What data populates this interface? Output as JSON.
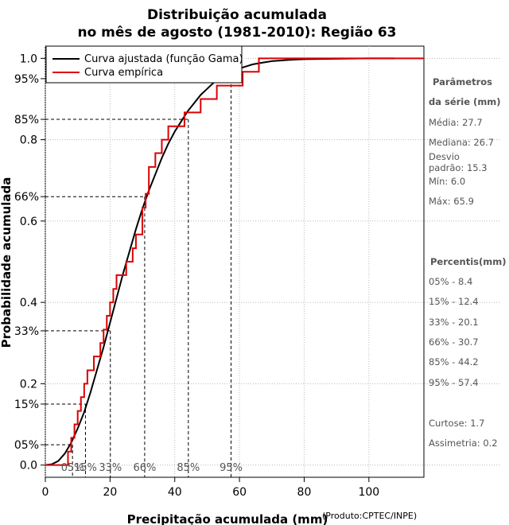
{
  "chart_data": {
    "type": "line",
    "title_line1": "Distribuição acumulada",
    "title_line2": "no mês de agosto (1981-2010): Região 63",
    "xlabel": "Precipitação acumulada (mm)",
    "ylabel": "Probabilidade acumulada",
    "credit": "(Produto:CPTEC/INPE)",
    "xlim": [
      0,
      117
    ],
    "ylim": [
      -0.03,
      1.03
    ],
    "x_ticks": [
      0,
      20,
      40,
      60,
      80,
      100
    ],
    "y_ticks": [
      "0.0",
      "0.2",
      "0.4",
      "0.6",
      "0.8",
      "1.0"
    ],
    "percentile_ticks": [
      {
        "label": "05%",
        "p": 0.05,
        "x": 8.4
      },
      {
        "label": "15%",
        "p": 0.15,
        "x": 12.4
      },
      {
        "label": "33%",
        "p": 0.33,
        "x": 20.1
      },
      {
        "label": "66%",
        "p": 0.66,
        "x": 30.7
      },
      {
        "label": "85%",
        "p": 0.85,
        "x": 44.2
      },
      {
        "label": "95%",
        "p": 0.95,
        "x": 57.4
      }
    ],
    "grid": true,
    "legend_position": "top-left",
    "series": [
      {
        "name": "Curva ajustada (função Gama)",
        "color": "#000000",
        "style": "smooth",
        "x": [
          0,
          2,
          4,
          6,
          8,
          10,
          12,
          14,
          16,
          18,
          20,
          22,
          24,
          26,
          28,
          30,
          32,
          34,
          36,
          38,
          40,
          42,
          44,
          46,
          48,
          50,
          52,
          54,
          56,
          58,
          60,
          62,
          64,
          66,
          70,
          75,
          80,
          90,
          100,
          108
        ],
        "y": [
          0,
          0.002,
          0.01,
          0.028,
          0.055,
          0.09,
          0.13,
          0.18,
          0.235,
          0.29,
          0.35,
          0.41,
          0.47,
          0.525,
          0.58,
          0.63,
          0.675,
          0.715,
          0.755,
          0.79,
          0.82,
          0.845,
          0.87,
          0.89,
          0.91,
          0.925,
          0.94,
          0.95,
          0.96,
          0.968,
          0.975,
          0.98,
          0.985,
          0.988,
          0.993,
          0.996,
          0.998,
          0.999,
          1.0,
          1.0
        ]
      },
      {
        "name": "Curva empírica",
        "color": "#dd0000",
        "style": "step",
        "x": [
          0,
          6,
          7,
          8,
          9,
          10,
          11,
          12,
          13,
          15,
          17,
          18,
          19,
          20,
          21,
          22,
          25,
          27,
          28,
          30,
          31,
          32,
          34,
          36,
          38,
          43,
          48,
          53,
          61,
          66,
          117
        ],
        "y": [
          0,
          0.0,
          0.033,
          0.067,
          0.1,
          0.133,
          0.167,
          0.2,
          0.233,
          0.267,
          0.3,
          0.333,
          0.367,
          0.4,
          0.433,
          0.467,
          0.5,
          0.533,
          0.567,
          0.633,
          0.667,
          0.733,
          0.767,
          0.8,
          0.833,
          0.867,
          0.9,
          0.933,
          0.967,
          1.0,
          1.0
        ]
      }
    ]
  },
  "side_panel": {
    "params_head1": "Parâmetros",
    "params_head2": "da série (mm)",
    "media": "Média: 27.7",
    "mediana": "Mediana: 26.7",
    "desvio1": "Desvio",
    "desvio2": "padrão: 15.3",
    "min": "Mín: 6.0",
    "max": "Máx: 65.9",
    "percentis_head": "Percentis(mm)",
    "p05": "05% - 8.4",
    "p15": "15% - 12.4",
    "p33": "33% - 20.1",
    "p66": "66% - 30.7",
    "p85": "85% - 44.2",
    "p95": "95% - 57.4",
    "curtose": "Curtose: 1.7",
    "assimetria": "Assimetria: 0.2"
  },
  "colors": {
    "fitted": "#000000",
    "empirical": "#dd0000",
    "grid": "#bbbbbb",
    "side_text": "#555555"
  }
}
